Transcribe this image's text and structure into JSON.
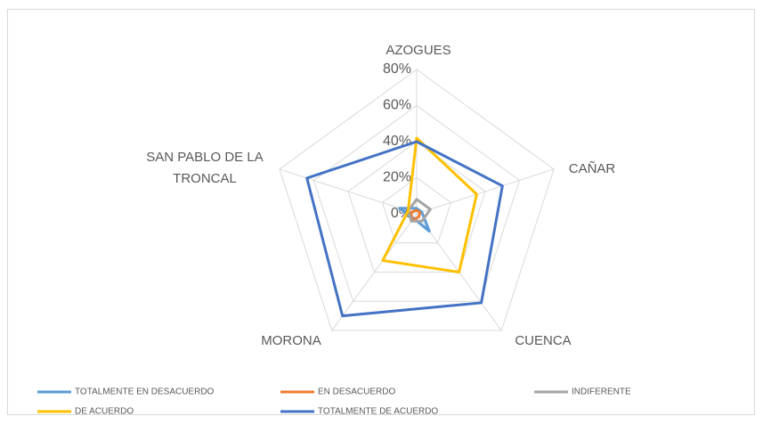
{
  "chart_data": {
    "type": "radar",
    "categories": [
      "AZOGUES",
      "CAÑAR",
      "CUENCA",
      "MORONA",
      "SAN PABLO DE LA TRONCAL"
    ],
    "rlim": [
      0,
      80
    ],
    "rticks": [
      {
        "value": 0,
        "label": "0%"
      },
      {
        "value": 20,
        "label": "20%"
      },
      {
        "value": 40,
        "label": "40%"
      },
      {
        "value": 60,
        "label": "60%"
      },
      {
        "value": 80,
        "label": "80%"
      }
    ],
    "grid": true,
    "legend": "bottom",
    "series": [
      {
        "name": "TOTALMENTE EN DESACUERDO",
        "color": "#5b9bd5",
        "values": [
          3,
          3,
          12,
          3,
          10
        ]
      },
      {
        "name": "EN DESACUERDO",
        "color": "#ed7d31",
        "values": [
          2,
          2,
          2,
          5,
          3
        ]
      },
      {
        "name": "INDIFERENTE",
        "color": "#a5a5a5",
        "values": [
          8,
          8,
          5,
          5,
          5
        ]
      },
      {
        "name": "DE ACUERDO",
        "color": "#ffc000",
        "values": [
          42,
          35,
          40,
          32,
          5
        ]
      },
      {
        "name": "TOTALMENTE DE ACUERDO",
        "color": "#4472c4",
        "values": [
          40,
          50,
          61,
          70,
          64
        ]
      }
    ]
  }
}
